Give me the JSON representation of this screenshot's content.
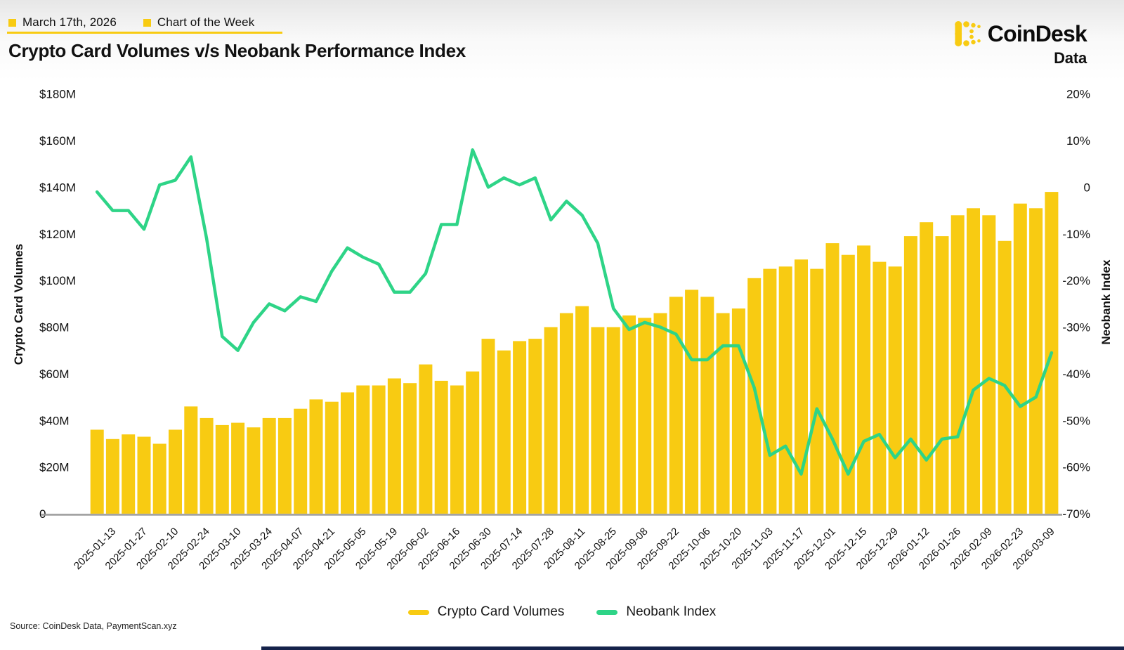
{
  "header": {
    "date_label": "March 17th, 2026",
    "badge_label": "Chart of the Week",
    "title": "Crypto Card Volumes v/s Neobank Performance Index"
  },
  "logo": {
    "brand": "CoinDesk",
    "product": "Data"
  },
  "legend": {
    "items": [
      {
        "label": "Crypto Card Volumes",
        "color": "#F8CB12"
      },
      {
        "label": "Neobank Index",
        "color": "#2ED487"
      }
    ]
  },
  "source_note": "Source: CoinDesk Data, PaymentScan.xyz",
  "colors": {
    "bar": "#F8CB12",
    "line": "#2ED487",
    "accent_yellow": "#F8CB12",
    "axis_line": "#9B9B9B",
    "text": "#111111",
    "bottom_bar": "#15224A"
  },
  "chart_data": {
    "type": "combo-bar-line",
    "title": "Crypto Card Volumes v/s Neobank Performance Index",
    "grid": false,
    "legend_position": "bottom",
    "x": [
      "2025-01-06",
      "2025-01-13",
      "2025-01-20",
      "2025-01-27",
      "2025-02-03",
      "2025-02-10",
      "2025-02-17",
      "2025-02-24",
      "2025-03-03",
      "2025-03-10",
      "2025-03-17",
      "2025-03-24",
      "2025-03-31",
      "2025-04-07",
      "2025-04-14",
      "2025-04-21",
      "2025-04-28",
      "2025-05-05",
      "2025-05-12",
      "2025-05-19",
      "2025-05-26",
      "2025-06-02",
      "2025-06-09",
      "2025-06-16",
      "2025-06-23",
      "2025-06-30",
      "2025-07-07",
      "2025-07-14",
      "2025-07-21",
      "2025-07-28",
      "2025-08-04",
      "2025-08-11",
      "2025-08-18",
      "2025-08-25",
      "2025-09-01",
      "2025-09-08",
      "2025-09-15",
      "2025-09-22",
      "2025-09-29",
      "2025-10-06",
      "2025-10-13",
      "2025-10-20",
      "2025-10-27",
      "2025-11-03",
      "2025-11-10",
      "2025-11-17",
      "2025-11-24",
      "2025-12-01",
      "2025-12-08",
      "2025-12-15",
      "2025-12-22",
      "2025-12-29",
      "2026-01-05",
      "2026-01-12",
      "2026-01-19",
      "2026-01-26",
      "2026-02-02",
      "2026-02-09",
      "2026-02-16",
      "2026-02-23",
      "2026-03-02",
      "2026-03-09"
    ],
    "x_tick_step": 2,
    "x_tick_labels": [
      "2025-01-13",
      "2025-01-27",
      "2025-02-10",
      "2025-02-24",
      "2025-03-10",
      "2025-03-24",
      "2025-04-07",
      "2025-04-21",
      "2025-05-05",
      "2025-05-19",
      "2025-06-02",
      "2025-06-16",
      "2025-06-30",
      "2025-07-14",
      "2025-07-28",
      "2025-08-11",
      "2025-08-25",
      "2025-09-08",
      "2025-09-22",
      "2025-10-06",
      "2025-10-20",
      "2025-11-03",
      "2025-11-17",
      "2025-12-01",
      "2025-12-15",
      "2025-12-29",
      "2026-01-12",
      "2026-01-26",
      "2026-02-09",
      "2026-02-23",
      "2026-03-09"
    ],
    "series": [
      {
        "name": "Crypto Card Volumes",
        "type": "bar",
        "axis": "left",
        "unit": "USD millions",
        "color": "#F8CB12",
        "values": [
          36,
          32,
          34,
          33,
          30,
          36,
          46,
          41,
          38,
          39,
          37,
          41,
          41,
          45,
          49,
          48,
          52,
          55,
          55,
          58,
          56,
          64,
          57,
          55,
          61,
          75,
          70,
          74,
          75,
          80,
          86,
          89,
          80,
          80,
          85,
          84,
          86,
          93,
          96,
          93,
          86,
          88,
          101,
          105,
          106,
          109,
          105,
          116,
          111,
          115,
          108,
          106,
          119,
          125,
          119,
          128,
          131,
          128,
          117,
          133,
          131,
          138
        ]
      },
      {
        "name": "Neobank Index",
        "type": "line",
        "axis": "right",
        "unit": "percent",
        "color": "#2ED487",
        "values": [
          -1,
          -5,
          -5,
          -9,
          0.5,
          1.5,
          6.5,
          -11,
          -32,
          -35,
          -29,
          -25,
          -26.5,
          -23.5,
          -24.5,
          -18,
          -13,
          -15,
          -16.5,
          -22.5,
          -22.5,
          -18.5,
          -8,
          -8,
          8,
          0,
          2,
          0.5,
          2,
          -7,
          -3,
          -6,
          -12,
          -26,
          -30.5,
          -29,
          -30,
          -31.5,
          -37,
          -37,
          -34,
          -34,
          -43,
          -57.5,
          -55.5,
          -61.5,
          -47.5,
          -54,
          -61.5,
          -54.5,
          -53,
          -58,
          -54,
          -58.5,
          -54,
          -53.5,
          -43.5,
          -41,
          -42.5,
          -47,
          -45,
          -35.5
        ]
      }
    ],
    "left_axis": {
      "title": "Crypto Card Volumes",
      "tick_labels": [
        "$180M",
        "$160M",
        "$140M",
        "$120M",
        "$100M",
        "$80M",
        "$60M",
        "$40M",
        "$20M",
        "0"
      ],
      "tick_values": [
        180,
        160,
        140,
        120,
        100,
        80,
        60,
        40,
        20,
        0
      ],
      "range": [
        0,
        180
      ]
    },
    "right_axis": {
      "title": "Neobank Index",
      "tick_labels": [
        "20%",
        "10%",
        "0",
        "-10%",
        "-20%",
        "-30%",
        "-40%",
        "-50%",
        "-60%",
        "-70%"
      ],
      "tick_values": [
        20,
        10,
        0,
        -10,
        -20,
        -30,
        -40,
        -50,
        -60,
        -70
      ],
      "range": [
        -70,
        20
      ]
    }
  }
}
